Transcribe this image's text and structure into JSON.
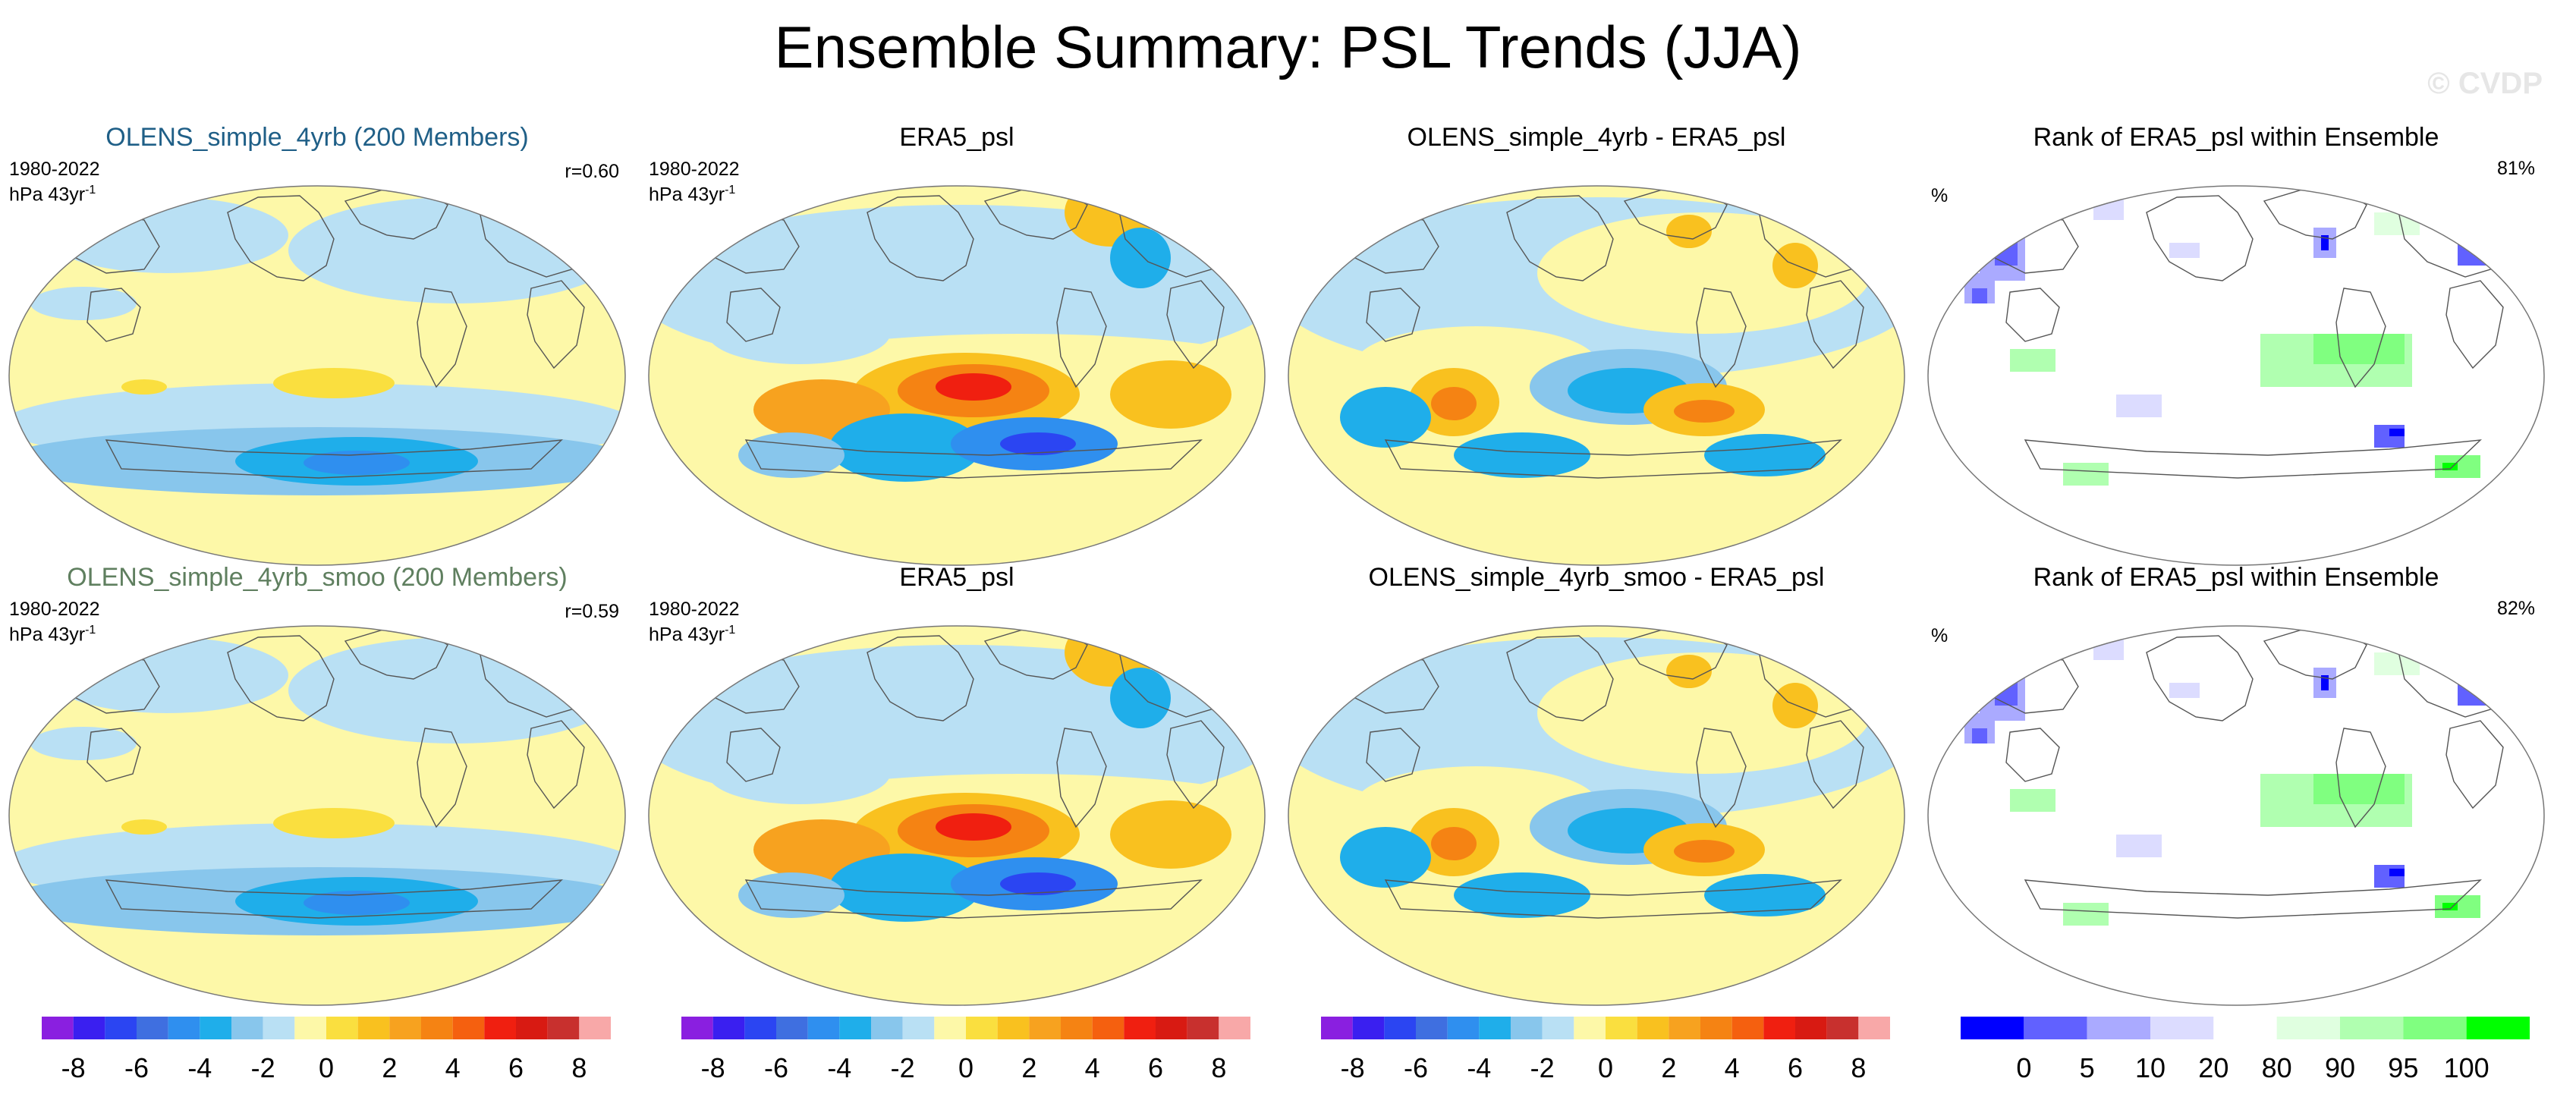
{
  "title": "Ensemble Summary: PSL Trends (JJA)",
  "credit": "© CVDP",
  "colors": {
    "trend_scale": [
      "#8a1fe0",
      "#3a1ff0",
      "#2b45f2",
      "#3f6fe0",
      "#2f8fef",
      "#1faeea",
      "#88c6ec",
      "#b9e0f4",
      "#fdf8a8",
      "#fadf3f",
      "#f9c11f",
      "#f7a21f",
      "#f58313",
      "#f5600f",
      "#f01f10",
      "#d81a12",
      "#c8302e",
      "#f8a8a8"
    ],
    "rank_scale": [
      "#0000ff",
      "#6161ff",
      "#aaaaff",
      "#dcdcff",
      "#ffffff",
      "#e0ffe0",
      "#b0ffb0",
      "#80ff80",
      "#00ff00"
    ],
    "title_rows": [
      "#1f5f87",
      "#5f7f5f"
    ]
  },
  "panels": [
    {
      "title": "OLENS_simple_4yrb (200 Members)",
      "years": "1980-2022",
      "units": "hPa 43yr",
      "units_sup": "-1",
      "r": "r=0.60"
    },
    {
      "title": "ERA5_psl",
      "years": "1980-2022",
      "units": "hPa 43yr",
      "units_sup": "-1"
    },
    {
      "title": "OLENS_simple_4yrb - ERA5_psl"
    },
    {
      "title": "Rank of ERA5_psl within Ensemble",
      "pct_label": "%",
      "pct_value": "81%"
    },
    {
      "title": "OLENS_simple_4yrb_smoo (200 Members)",
      "years": "1980-2022",
      "units": "hPa 43yr",
      "units_sup": "-1",
      "r": "r=0.59"
    },
    {
      "title": "ERA5_psl",
      "years": "1980-2022",
      "units": "hPa 43yr",
      "units_sup": "-1"
    },
    {
      "title": "OLENS_simple_4yrb_smoo - ERA5_psl"
    },
    {
      "title": "Rank of ERA5_psl within Ensemble",
      "pct_label": "%",
      "pct_value": "82%"
    }
  ],
  "chart_data": [
    {
      "type": "heatmap",
      "title": "Ensemble Summary: PSL Trends (JJA)",
      "panels": [
        "OLENS_simple_4yrb (200 Members)",
        "ERA5_psl",
        "OLENS_simple_4yrb - ERA5_psl",
        "Rank of ERA5_psl within Ensemble",
        "OLENS_simple_4yrb_smoo (200 Members)",
        "ERA5_psl",
        "OLENS_simple_4yrb_smoo - ERA5_psl",
        "Rank of ERA5_psl within Ensemble"
      ],
      "pattern_correlation": {
        "OLENS_simple_4yrb": 0.6,
        "OLENS_simple_4yrb_smoo": 0.59
      },
      "rank_percent": {
        "row1": 81,
        "row2": 82
      }
    },
    {
      "type": "colorbar",
      "label": "trend colorbar",
      "ticks": [
        "-8",
        "-6",
        "-4",
        "-2",
        "0",
        "2",
        "4",
        "6",
        "8"
      ],
      "range": [
        -9,
        9
      ],
      "units": "hPa 43yr-1"
    },
    {
      "type": "colorbar",
      "label": "rank colorbar",
      "ticks": [
        "0",
        "5",
        "10",
        "20",
        "80",
        "90",
        "95",
        "100"
      ],
      "units": "%"
    }
  ]
}
